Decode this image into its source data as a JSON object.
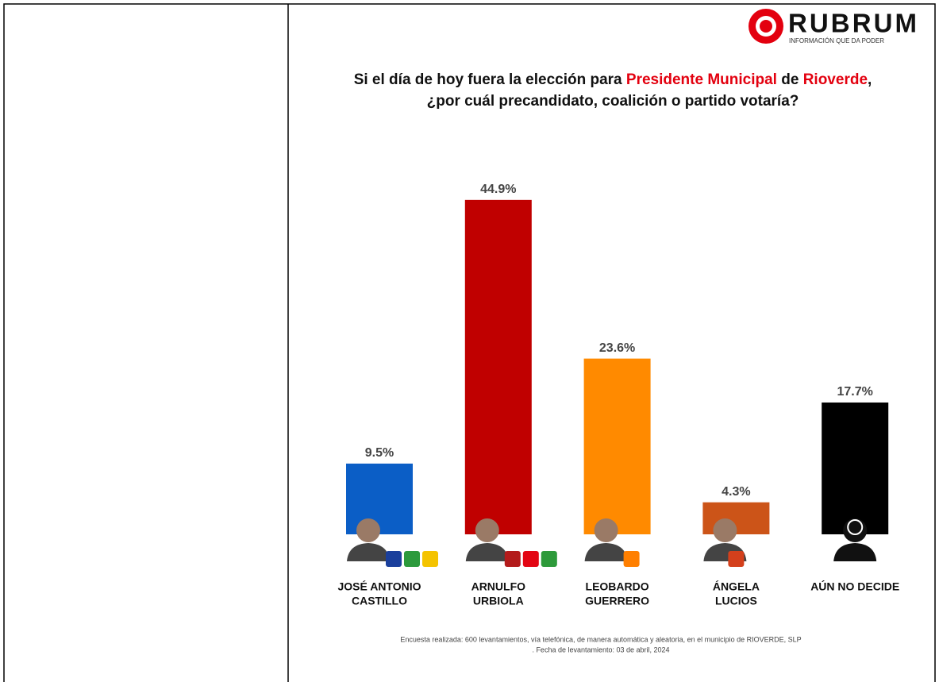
{
  "chart_data": {
    "type": "bar",
    "logo": {
      "name": "RUBRUM",
      "tagline": "INFORMACIÓN QUE DA PODER"
    },
    "title_line1": [
      "Si el día de hoy fuera la elección para",
      "Presidente Municipal",
      "de",
      "Rioverde",
      ","
    ],
    "title_line2": "¿por cuál precandidato, coalición o partido votaría?",
    "categories": [
      [
        "JOSÉ ANTONIO",
        "CASTILLO"
      ],
      [
        "ARNULFO",
        "URBIOLA"
      ],
      [
        "LEOBARDO",
        "GUERRERO"
      ],
      [
        "ÁNGELA",
        "LUCIOS"
      ],
      [
        "AÚN NO DECIDE"
      ]
    ],
    "values": [
      9.5,
      44.9,
      23.6,
      4.3,
      17.7
    ],
    "value_labels": [
      "9.5%",
      "44.9%",
      "23.6%",
      "4.3%",
      "17.7%"
    ],
    "colors": [
      "#0b5ec6",
      "#c00000",
      "#ff8a00",
      "#cc5418",
      "#000000"
    ],
    "footnote": [
      "Encuesta realizada: 600 levantamientos, vía telefónica, de manera automática y aleatoria, en el municipio de RIOVERDE, SLP",
      ". Fecha de levantamiento: 03 de abril, 2024"
    ]
  }
}
